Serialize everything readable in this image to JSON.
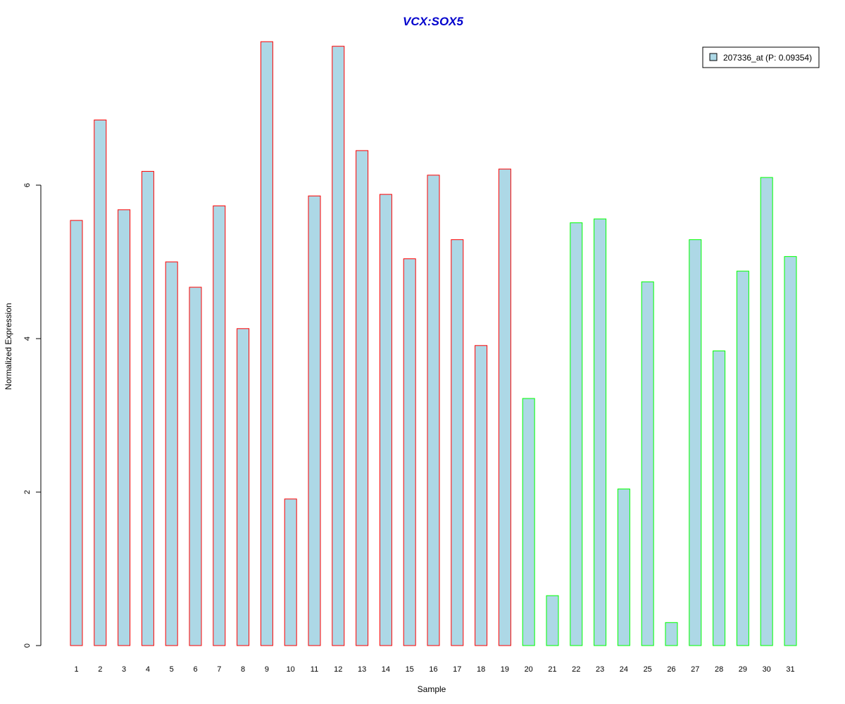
{
  "colors": {
    "bar_fill": "#add8e6",
    "group1_border": "#ff0000",
    "group2_border": "#00ff00",
    "title": "#0000cd"
  },
  "chart_data": {
    "type": "bar",
    "title": "VCX:SOX5",
    "xlabel": "Sample",
    "ylabel": "Normalized Expression",
    "ylim": [
      0,
      7.87
    ],
    "yticks": [
      0,
      2,
      4,
      6
    ],
    "grid": false,
    "legend_position": "top-right",
    "categories": [
      "1",
      "2",
      "3",
      "4",
      "5",
      "6",
      "7",
      "8",
      "9",
      "10",
      "11",
      "12",
      "13",
      "14",
      "15",
      "16",
      "17",
      "18",
      "19",
      "20",
      "21",
      "22",
      "23",
      "24",
      "25",
      "26",
      "27",
      "28",
      "29",
      "30",
      "31"
    ],
    "series": [
      {
        "name": "207336_at (P: 0.09354)",
        "values": [
          5.54,
          6.85,
          5.68,
          6.18,
          5.0,
          4.67,
          5.73,
          4.13,
          7.87,
          1.91,
          5.86,
          7.81,
          6.45,
          5.88,
          5.04,
          6.13,
          5.29,
          3.91,
          6.21,
          3.22,
          0.65,
          5.51,
          5.56,
          2.04,
          4.74,
          0.3,
          5.29,
          3.84,
          4.88,
          6.1,
          5.07
        ],
        "group": [
          1,
          1,
          1,
          1,
          1,
          1,
          1,
          1,
          1,
          1,
          1,
          1,
          1,
          1,
          1,
          1,
          1,
          1,
          1,
          2,
          2,
          2,
          2,
          2,
          2,
          2,
          2,
          2,
          2,
          2,
          2
        ]
      }
    ]
  }
}
